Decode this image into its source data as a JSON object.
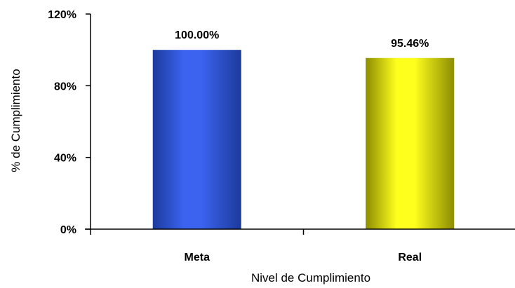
{
  "chart_data": {
    "type": "bar",
    "categories": [
      "Meta",
      "Real"
    ],
    "values": [
      100.0,
      95.46
    ],
    "data_labels": [
      "100.00%",
      "95.46%"
    ],
    "xlabel": "Nivel de Cumplimiento",
    "ylabel": "% de Cumplimiento",
    "ylim": [
      0,
      120
    ],
    "yticks": [
      0,
      40,
      80,
      120
    ],
    "ytick_labels": [
      "0%",
      "40%",
      "80%",
      "120%"
    ],
    "grid": false,
    "legend": "none",
    "bar_colors": [
      {
        "light": "#3b63f0",
        "dark": "#1c3a9c"
      },
      {
        "light": "#ffff1e",
        "dark": "#8c8c00"
      }
    ]
  }
}
